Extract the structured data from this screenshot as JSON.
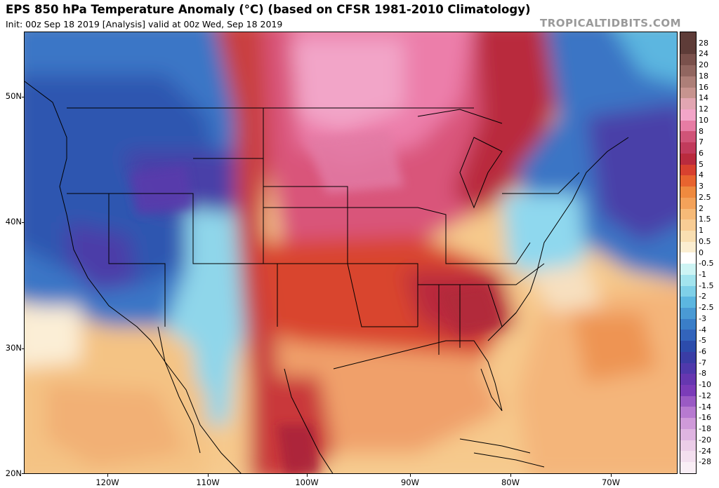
{
  "header": {
    "title": "EPS 850 hPa Temperature Anomaly (°C) (based on CFSR 1981-2010 Climatology)",
    "subtitle": "Init: 00z Sep 18 2019   [Analysis]   valid at 00z Wed, Sep 18 2019",
    "brand": "TROPICALTIDBITS.COM"
  },
  "map": {
    "lat_labels": [
      "50N",
      "40N",
      "30N",
      "20N"
    ],
    "lon_labels": [
      "120W",
      "110W",
      "100W",
      "90W",
      "80W",
      "70W"
    ],
    "lat_range": [
      20,
      55
    ],
    "lon_range": [
      -128,
      -63
    ]
  },
  "colorbar": {
    "labels": [
      "28",
      "24",
      "20",
      "18",
      "16",
      "14",
      "12",
      "10",
      "8",
      "7",
      "6",
      "5",
      "4",
      "3",
      "2.5",
      "2",
      "1.5",
      "1",
      "0.5",
      "0",
      "-0.5",
      "-1",
      "-1.5",
      "-2",
      "-2.5",
      "-3",
      "-4",
      "-5",
      "-6",
      "-7",
      "-8",
      "-10",
      "-12",
      "-14",
      "-16",
      "-18",
      "-20",
      "-24",
      "-28"
    ],
    "colors": [
      "#5e3c38",
      "#7a514c",
      "#916660",
      "#ad7f78",
      "#c7948f",
      "#e2a6b2",
      "#f2a5c8",
      "#e77ca4",
      "#d05478",
      "#c13b5c",
      "#b92b3e",
      "#d8412f",
      "#e8642f",
      "#ef8a3f",
      "#f3a25a",
      "#f6ba78",
      "#f8cd95",
      "#f9dfb2",
      "#fbeed1",
      "#ffffff",
      "#cdf4f4",
      "#a3e4ee",
      "#7fd0e8",
      "#5cb6e0",
      "#4a9ad4",
      "#3a7ec8",
      "#3364bb",
      "#2c4cab",
      "#3a3da5",
      "#4f39ab",
      "#6637b0",
      "#7b3cb8",
      "#9a5ac4",
      "#b77ad0",
      "#cf9ad9",
      "#dfb5e1",
      "#ebcde8",
      "#f3dfef",
      "#f9eef5"
    ]
  }
}
